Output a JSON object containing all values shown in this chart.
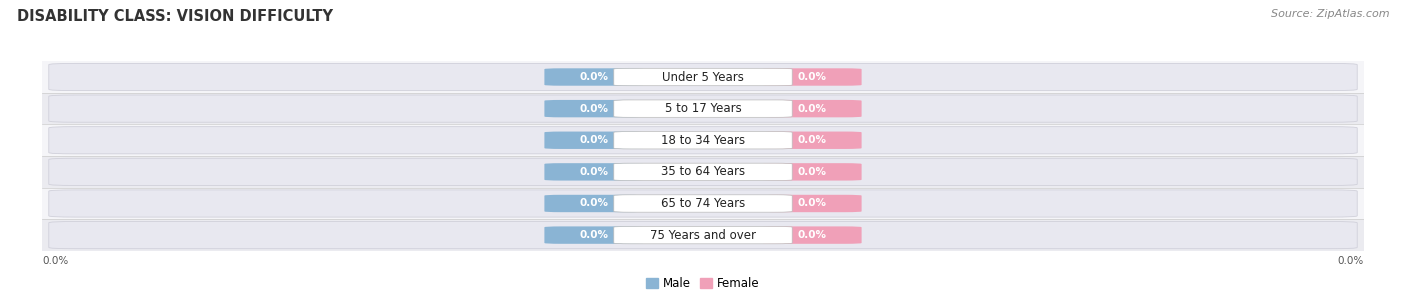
{
  "title": "DISABILITY CLASS: VISION DIFFICULTY",
  "source_text": "Source: ZipAtlas.com",
  "categories": [
    "Under 5 Years",
    "5 to 17 Years",
    "18 to 34 Years",
    "35 to 64 Years",
    "65 to 74 Years",
    "75 Years and over"
  ],
  "male_values": [
    0.0,
    0.0,
    0.0,
    0.0,
    0.0,
    0.0
  ],
  "female_values": [
    0.0,
    0.0,
    0.0,
    0.0,
    0.0,
    0.0
  ],
  "male_color": "#8ab4d4",
  "female_color": "#f0a0b8",
  "track_color": "#e0e0e8",
  "track_border_color": "#cccccc",
  "row_bg_colors": [
    "#f5f5f8",
    "#ebebf0"
  ],
  "title_fontsize": 10.5,
  "source_fontsize": 8,
  "label_fontsize": 8.5,
  "value_fontsize": 7.5,
  "axis_label_left": "0.0%",
  "axis_label_right": "0.0%",
  "figsize": [
    14.06,
    3.06
  ],
  "dpi": 100
}
